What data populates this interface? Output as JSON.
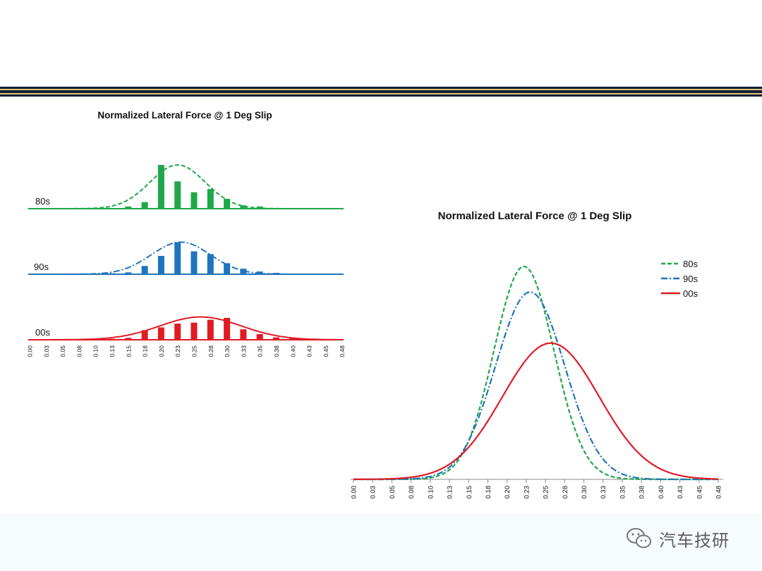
{
  "colors": {
    "s80": "#1fa84a",
    "s90": "#1f74bd",
    "s00": "#e01b24",
    "rule_navy": "#0f1f3d",
    "rule_gold": "#e2c96a"
  },
  "watermark": {
    "text": "汽车技研",
    "icon": "wechat-icon"
  },
  "chart_data": [
    {
      "type": "bar",
      "title": "Normalized Lateral Force @ 1 Deg Slip",
      "categories": [
        "0.00",
        "0.03",
        "0.05",
        "0.08",
        "0.10",
        "0.13",
        "0.15",
        "0.18",
        "0.20",
        "0.23",
        "0.25",
        "0.28",
        "0.30",
        "0.33",
        "0.35",
        "0.38",
        "0.40",
        "0.43",
        "0.45",
        "0.48"
      ],
      "series": [
        {
          "name": "80s",
          "bar_values": [
            0,
            0,
            0,
            0,
            0,
            0.5,
            2,
            6,
            40,
            25,
            15,
            18,
            9,
            3,
            2,
            0.5,
            0.2,
            0,
            0,
            0
          ],
          "fit_curve": {
            "mean": 0.225,
            "sd": 0.042,
            "peak": 40
          }
        },
        {
          "name": "90s",
          "bar_values": [
            0,
            0,
            0,
            0,
            0.5,
            1,
            2,
            9,
            20,
            35,
            25,
            22,
            12,
            6,
            3,
            1.5,
            0.5,
            0.2,
            0,
            0
          ],
          "fit_curve": {
            "mean": 0.23,
            "sd": 0.045,
            "peak": 35
          }
        },
        {
          "name": "00s",
          "bar_values": [
            0,
            0,
            0,
            0,
            0,
            1,
            2,
            10,
            13,
            17,
            18,
            21,
            23,
            11,
            6,
            2.5,
            2,
            0.5,
            0,
            0
          ],
          "fit_curve": {
            "mean": 0.26,
            "sd": 0.062,
            "peak": 24
          }
        }
      ],
      "grid": false,
      "legend": "inline labels"
    },
    {
      "type": "line",
      "title": "Normalized Lateral Force @ 1 Deg Slip",
      "x_ticks": [
        "0.00",
        "0.03",
        "0.05",
        "0.08",
        "0.10",
        "0.13",
        "0.15",
        "0.18",
        "0.20",
        "0.23",
        "0.25",
        "0.28",
        "0.30",
        "0.33",
        "0.35",
        "0.38",
        "0.40",
        "0.43",
        "0.45",
        "0.48"
      ],
      "xlim": [
        0,
        0.475
      ],
      "series": [
        {
          "name": "80s",
          "mean": 0.222,
          "sd": 0.039,
          "peak": 1.0,
          "style": "dashed"
        },
        {
          "name": "90s",
          "mean": 0.23,
          "sd": 0.045,
          "peak": 0.88,
          "style": "dash-dot"
        },
        {
          "name": "00s",
          "mean": 0.257,
          "sd": 0.063,
          "peak": 0.64,
          "style": "solid"
        }
      ],
      "grid": false,
      "legend": "top-right"
    }
  ]
}
